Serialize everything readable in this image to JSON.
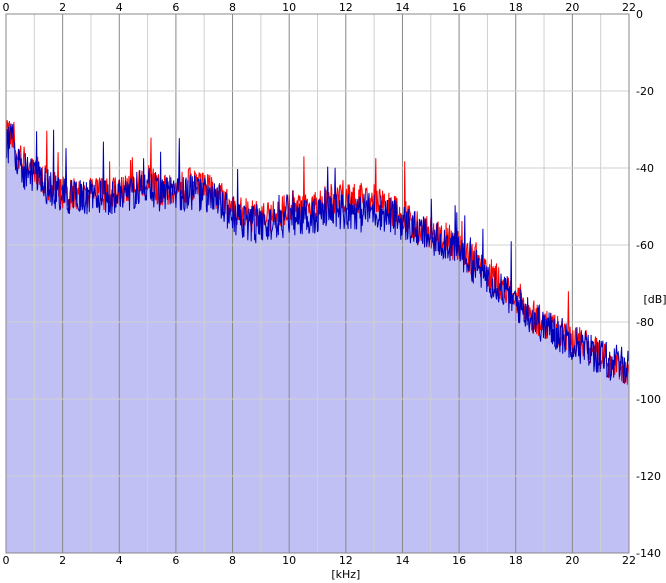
{
  "chart_data": {
    "type": "area",
    "xlabel": "[kHz]",
    "ylabel": "[dB]",
    "xlim": [
      0,
      22
    ],
    "ylim": [
      -140,
      0
    ],
    "x_ticks": [
      "0",
      "2",
      "4",
      "6",
      "8",
      "10",
      "12",
      "14",
      "16",
      "18",
      "20",
      "22"
    ],
    "y_ticks": [
      "0",
      "-20",
      "-40",
      "-60",
      "-80",
      "-100",
      "-120",
      "-140"
    ],
    "grid": true,
    "colors": {
      "background": "#ffffff",
      "plot_background": "#ffffff",
      "area_fill": "#c0c0f5",
      "grid_major": "#888888",
      "grid_minor": "#d0d0d0",
      "series_red": "#ff0000",
      "series_blue": "#0000bb"
    },
    "series": [
      {
        "color": "#ff0000",
        "x": [
          0,
          0.2,
          0.5,
          1.0,
          1.5,
          2.0,
          2.5,
          3.0,
          3.5,
          4.0,
          4.5,
          5.0,
          5.5,
          6.0,
          6.5,
          7.0,
          7.5,
          8.0,
          8.5,
          9.0,
          9.5,
          10.0,
          10.5,
          11.0,
          11.5,
          12.0,
          12.5,
          13.0,
          13.5,
          14.0,
          14.5,
          15.0,
          15.5,
          16.0,
          16.5,
          17.0,
          17.5,
          18.0,
          18.5,
          19.0,
          19.5,
          20.0,
          20.5,
          21.0,
          21.5,
          22.0
        ],
        "values": [
          -32,
          -30,
          -38,
          -40,
          -44,
          -46,
          -47,
          -46,
          -47,
          -46,
          -45,
          -43,
          -46,
          -46,
          -44,
          -45,
          -47,
          -50,
          -52,
          -53,
          -52,
          -50,
          -50,
          -49,
          -48,
          -47,
          -48,
          -48,
          -50,
          -52,
          -55,
          -57,
          -58,
          -60,
          -64,
          -67,
          -70,
          -74,
          -78,
          -80,
          -82,
          -84,
          -86,
          -89,
          -92,
          -92
        ]
      },
      {
        "color": "#0000bb",
        "x": [
          0,
          0.2,
          0.5,
          1.0,
          1.5,
          2.0,
          2.5,
          3.0,
          3.5,
          4.0,
          4.5,
          5.0,
          5.5,
          6.0,
          6.5,
          7.0,
          7.5,
          8.0,
          8.5,
          9.0,
          9.5,
          10.0,
          10.5,
          11.0,
          11.5,
          12.0,
          12.5,
          13.0,
          13.5,
          14.0,
          14.5,
          15.0,
          15.5,
          16.0,
          16.5,
          17.0,
          17.5,
          18.0,
          18.5,
          19.0,
          19.5,
          20.0,
          20.5,
          21.0,
          21.5,
          22.0
        ],
        "values": [
          -35,
          -32,
          -40,
          -42,
          -45,
          -47,
          -48,
          -47,
          -48,
          -47,
          -46,
          -44,
          -47,
          -47,
          -46,
          -47,
          -49,
          -52,
          -54,
          -55,
          -54,
          -53,
          -53,
          -52,
          -51,
          -51,
          -51,
          -51,
          -52,
          -54,
          -56,
          -58,
          -59,
          -61,
          -65,
          -68,
          -71,
          -75,
          -78,
          -81,
          -83,
          -85,
          -87,
          -89,
          -91,
          -91
        ]
      }
    ]
  }
}
